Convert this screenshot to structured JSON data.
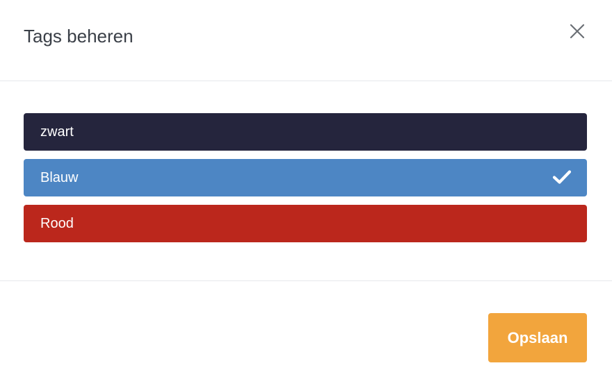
{
  "dialog": {
    "title": "Tags beheren",
    "close_icon": "close-icon"
  },
  "tags": [
    {
      "label": "zwart",
      "color": "#25253d",
      "selected": false
    },
    {
      "label": "Blauw",
      "color": "#4d86c4",
      "selected": true,
      "check_icon": "checkmark-icon"
    },
    {
      "label": "Rood",
      "color": "#bb271c",
      "selected": false
    }
  ],
  "footer": {
    "save_label": "Opslaan",
    "save_color": "#f2a53d"
  }
}
